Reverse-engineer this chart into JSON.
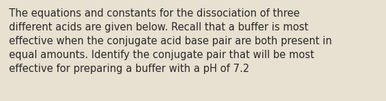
{
  "text": "The equations and constants for the dissociation of three\ndifferent acids are given below. Recall that a buffer is most\neffective when the conjugate acid base pair are both present in\nequal amounts. Identify the conjugate pair that will be most\neffective for preparing a buffer with a pH of 7.2",
  "background_color": "#e8e0d0",
  "text_color": "#2a2a2a",
  "font_size": 10.5,
  "figwidth": 5.58,
  "figheight": 1.46
}
